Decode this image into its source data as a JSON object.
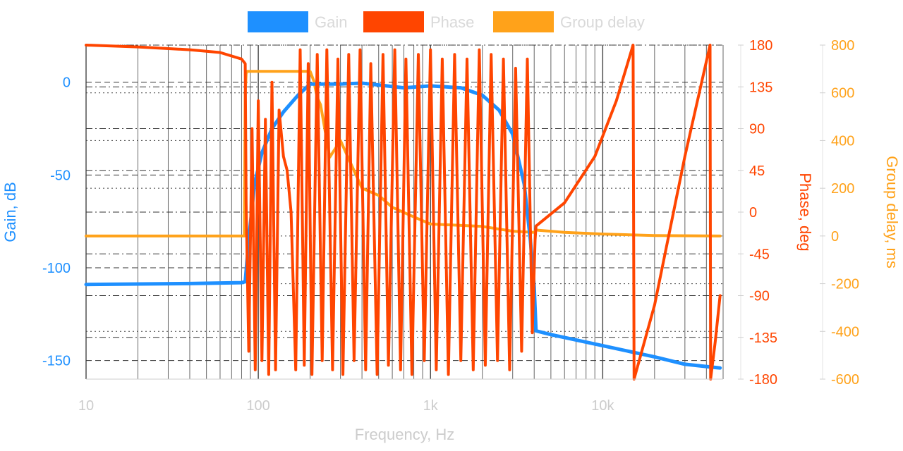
{
  "chart_data": {
    "type": "line",
    "legend": {
      "placement": "top-center"
    },
    "grid": true,
    "x_axis": {
      "label": "Frequency, Hz",
      "scale": "log",
      "range": [
        10,
        50000
      ],
      "ticks": [
        10,
        100,
        1000,
        10000
      ],
      "tick_labels": [
        "10",
        "100",
        "1k",
        "10k"
      ]
    },
    "y_axes": [
      {
        "id": "gain",
        "label": "Gain, dB",
        "side": "left",
        "color": "#1e90ff",
        "range": [
          -160,
          20
        ],
        "ticks": [
          0,
          -50,
          -100,
          -150
        ],
        "tick_labels": [
          "0",
          "-50",
          "-100",
          "-150"
        ]
      },
      {
        "id": "phase",
        "label": "Phase, deg",
        "side": "right",
        "color": "#ff4500",
        "range": [
          -180,
          180
        ],
        "ticks": [
          180,
          135,
          90,
          45,
          0,
          -45,
          -90,
          -135,
          -180
        ],
        "tick_labels": [
          "180",
          "135",
          "90",
          "45",
          "0",
          "-45",
          "-90",
          "-135",
          "-180"
        ]
      },
      {
        "id": "delay",
        "label": "Group delay, ms",
        "side": "right",
        "color": "#ffa21a",
        "range": [
          -600,
          800
        ],
        "ticks": [
          800,
          600,
          400,
          200,
          0,
          -200,
          -400,
          -600
        ],
        "tick_labels": [
          "800",
          "600",
          "400",
          "200",
          "0",
          "-200",
          "-400",
          "-600"
        ]
      }
    ],
    "series": [
      {
        "name": "Gain",
        "axis": "gain",
        "color": "#1e90ff",
        "x": [
          10,
          40,
          80,
          84,
          88,
          95,
          105,
          120,
          140,
          170,
          200,
          300,
          400,
          500,
          700,
          1000,
          1500,
          2000,
          2500,
          3000,
          3500,
          3800,
          4000,
          4100,
          5000,
          10000,
          20000,
          30000,
          48000
        ],
        "y": [
          -109,
          -108.5,
          -108,
          -107.5,
          -85,
          -55,
          -38,
          -25,
          -16,
          -7,
          -1,
          -1,
          -0.5,
          -1.5,
          -3,
          -2,
          -3,
          -7,
          -15,
          -28,
          -55,
          -85,
          -110,
          -134,
          -136,
          -142,
          -148,
          -152,
          -154
        ]
      },
      {
        "name": "Phase",
        "axis": "phase",
        "color": "#ff4500",
        "x": [
          10,
          20,
          40,
          60,
          80,
          84,
          85,
          88,
          92,
          96,
          100,
          105,
          110,
          115,
          120,
          126,
          132,
          140,
          147,
          155,
          165,
          175,
          185,
          195,
          205,
          220,
          235,
          250,
          270,
          290,
          310,
          335,
          360,
          390,
          420,
          450,
          490,
          530,
          570,
          620,
          670,
          720,
          780,
          850,
          920,
          1000,
          1080,
          1170,
          1270,
          1380,
          1500,
          1630,
          1770,
          1920,
          2080,
          2250,
          2450,
          2650,
          2880,
          3120,
          3380,
          3650,
          3900,
          4050,
          4100,
          6000,
          9000,
          12000,
          15000,
          15200,
          20000,
          30000,
          42000,
          42300,
          45000,
          48000
        ],
        "y": [
          180,
          178,
          175,
          172,
          165,
          160,
          10,
          -150,
          90,
          -170,
          120,
          -160,
          100,
          -175,
          140,
          -170,
          110,
          60,
          45,
          0,
          -170,
          175,
          -165,
          160,
          -175,
          170,
          -160,
          175,
          -170,
          165,
          -175,
          170,
          -160,
          175,
          -170,
          160,
          -175,
          170,
          -165,
          175,
          -170,
          165,
          -175,
          170,
          -160,
          175,
          -170,
          165,
          -175,
          170,
          -160,
          165,
          -170,
          175,
          -165,
          170,
          -160,
          165,
          -170,
          155,
          -150,
          165,
          -130,
          -30,
          -15,
          10,
          60,
          120,
          180,
          -180,
          -100,
          60,
          180,
          -180,
          -140,
          -90
        ]
      },
      {
        "name": "Group delay",
        "axis": "delay",
        "color": "#ffa21a",
        "x": [
          10,
          40,
          83,
          84,
          85,
          86,
          100,
          150,
          200,
          210,
          220,
          230,
          260,
          300,
          400,
          500,
          600,
          800,
          1000,
          2000,
          3000,
          4000,
          4100,
          6000,
          10000,
          20000,
          48000
        ],
        "y": [
          0,
          0,
          0,
          600,
          680,
          690,
          690,
          690,
          690,
          650,
          580,
          550,
          330,
          400,
          200,
          170,
          120,
          80,
          50,
          40,
          20,
          15,
          25,
          15,
          8,
          2,
          0
        ]
      }
    ]
  }
}
